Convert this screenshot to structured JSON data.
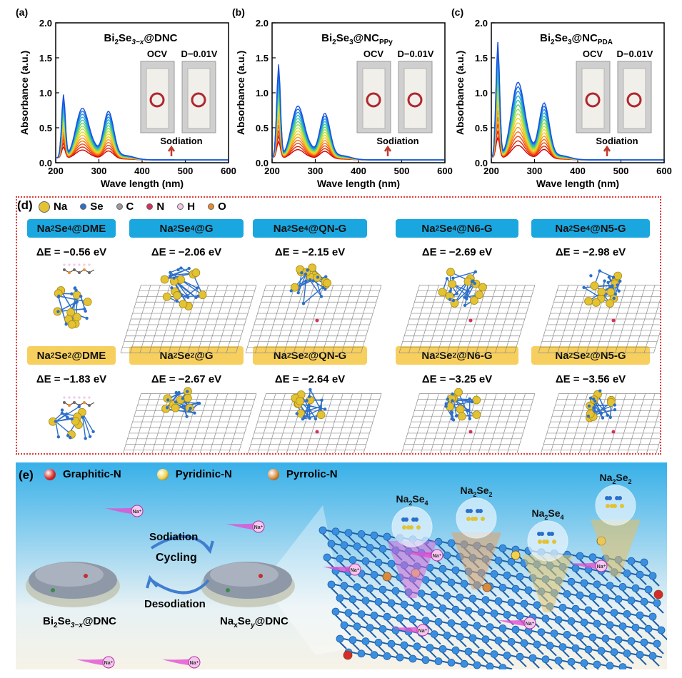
{
  "panel_labels": {
    "a": "(a)",
    "b": "(b)",
    "c": "(c)",
    "d": "(d)",
    "e": "(e)"
  },
  "uv": {
    "xlabel": "Wave length (nm)",
    "ylabel": "Absorbance (a.u.)",
    "x_ticks": [
      "200",
      "300",
      "400",
      "500",
      "600"
    ],
    "y_ticks": [
      "0.0",
      "0.5",
      "1.0",
      "1.5",
      "2.0"
    ],
    "photo_labels": {
      "ocv": "OCV",
      "dis": "D−0.01V"
    },
    "sodiation": "Sodiation",
    "titles": {
      "a": {
        "main": "Bi",
        "s1": "2",
        "mid": "Se",
        "s2": "3−x",
        "tail": "@DNC"
      },
      "b": {
        "main": "Bi",
        "s1": "2",
        "mid": "Se",
        "s2": "3",
        "tail": "@NC",
        "sub": "PPy"
      },
      "c": {
        "main": "Bi",
        "s1": "2",
        "mid": "Se",
        "s2": "3",
        "tail": "@NC",
        "sub": "PDA"
      }
    }
  },
  "chart_data": [
    {
      "type": "line",
      "title": "Bi2Se3−x@DNC",
      "xlabel": "Wave length (nm)",
      "ylabel": "Absorbance (a.u.)",
      "xlim": [
        200,
        600
      ],
      "ylim": [
        0,
        2.0
      ],
      "peaks_final_curve": [
        {
          "x": 218,
          "y": 0.9
        },
        {
          "x": 262,
          "y": 0.73
        },
        {
          "x": 322,
          "y": 0.68
        }
      ]
    },
    {
      "type": "line",
      "title": "Bi2Se3@NCPPy",
      "xlabel": "Wave length (nm)",
      "ylabel": "Absorbance (a.u.)",
      "xlim": [
        200,
        600
      ],
      "ylim": [
        0,
        2.0
      ],
      "peaks_final_curve": [
        {
          "x": 215,
          "y": 1.33
        },
        {
          "x": 260,
          "y": 0.76
        },
        {
          "x": 322,
          "y": 0.65
        }
      ]
    },
    {
      "type": "line",
      "title": "Bi2Se3@NCPDA",
      "xlabel": "Wave length (nm)",
      "ylabel": "Absorbance (a.u.)",
      "xlim": [
        200,
        600
      ],
      "ylim": [
        0,
        2.0
      ],
      "peaks_final_curve": [
        {
          "x": 215,
          "y": 1.65
        },
        {
          "x": 262,
          "y": 1.1
        },
        {
          "x": 322,
          "y": 0.8
        }
      ]
    }
  ],
  "legend_d": [
    {
      "label": "Na",
      "color": "#e3c234"
    },
    {
      "label": "Se",
      "color": "#2c6fc9"
    },
    {
      "label": "C",
      "color": "#9a9a9a"
    },
    {
      "label": "N",
      "color": "#d8305b"
    },
    {
      "label": "H",
      "color": "#f3c6e8"
    },
    {
      "label": "O",
      "color": "#e98a2e"
    }
  ],
  "row1": [
    {
      "a": "Na",
      "b": "2",
      "c": "Se",
      "d": "4",
      "e": "@DME",
      "de": "ΔE = −0.56 eV"
    },
    {
      "a": "Na",
      "b": "2",
      "c": "Se",
      "d": "4",
      "e": "@G",
      "de": "ΔE = −2.06 eV"
    },
    {
      "a": "Na",
      "b": "2",
      "c": "Se",
      "d": "4",
      "e": "@QN-G",
      "de": "ΔE = −2.15 eV"
    },
    {
      "a": "Na",
      "b": "2",
      "c": "Se",
      "d": "4",
      "e": "@N6-G",
      "de": "ΔE = −2.69 eV"
    },
    {
      "a": "Na",
      "b": "2",
      "c": "Se",
      "d": "4",
      "e": "@N5-G",
      "de": "ΔE = −2.98 eV"
    }
  ],
  "row2": [
    {
      "a": "Na",
      "b": "2",
      "c": "Se",
      "d": "2",
      "e": "@DME",
      "de": "ΔE = −1.83 eV"
    },
    {
      "a": "Na",
      "b": "2",
      "c": "Se",
      "d": "2",
      "e": "@G",
      "de": "ΔE = −2.67 eV"
    },
    {
      "a": "Na",
      "b": "2",
      "c": "Se",
      "d": "2",
      "e": "@QN-G",
      "de": "ΔE = −2.64 eV"
    },
    {
      "a": "Na",
      "b": "2",
      "c": "Se",
      "d": "2",
      "e": "@N6-G",
      "de": "ΔE = −3.25 eV"
    },
    {
      "a": "Na",
      "b": "2",
      "c": "Se",
      "d": "2",
      "e": "@N5-G",
      "de": "ΔE = −3.56 eV"
    }
  ],
  "panel_e": {
    "legend": [
      {
        "label": "Graphitic-N",
        "color": "#d82a2a"
      },
      {
        "label": "Pyridinic-N",
        "color": "#f0d24a"
      },
      {
        "label": "Pyrrolic-N",
        "color": "#d98a3c"
      }
    ],
    "sodiation": "Sodiation",
    "cycling": "Cycling",
    "desodiation": "Desodiation",
    "left_name": {
      "a": "Bi",
      "b": "2",
      "c": "Se",
      "d": "3−x",
      "e": "@DNC"
    },
    "right_name": {
      "a": "Na",
      "b": "x",
      "c": "Se",
      "d": "y",
      "e": "@DNC"
    },
    "ion": "Na⁺",
    "species": [
      {
        "a": "Na",
        "b": "2",
        "c": "Se",
        "d": "4"
      },
      {
        "a": "Na",
        "b": "2",
        "c": "Se",
        "d": "2"
      },
      {
        "a": "Na",
        "b": "2",
        "c": "Se",
        "d": "4"
      },
      {
        "a": "Na",
        "b": "2",
        "c": "Se",
        "d": "2"
      }
    ]
  }
}
